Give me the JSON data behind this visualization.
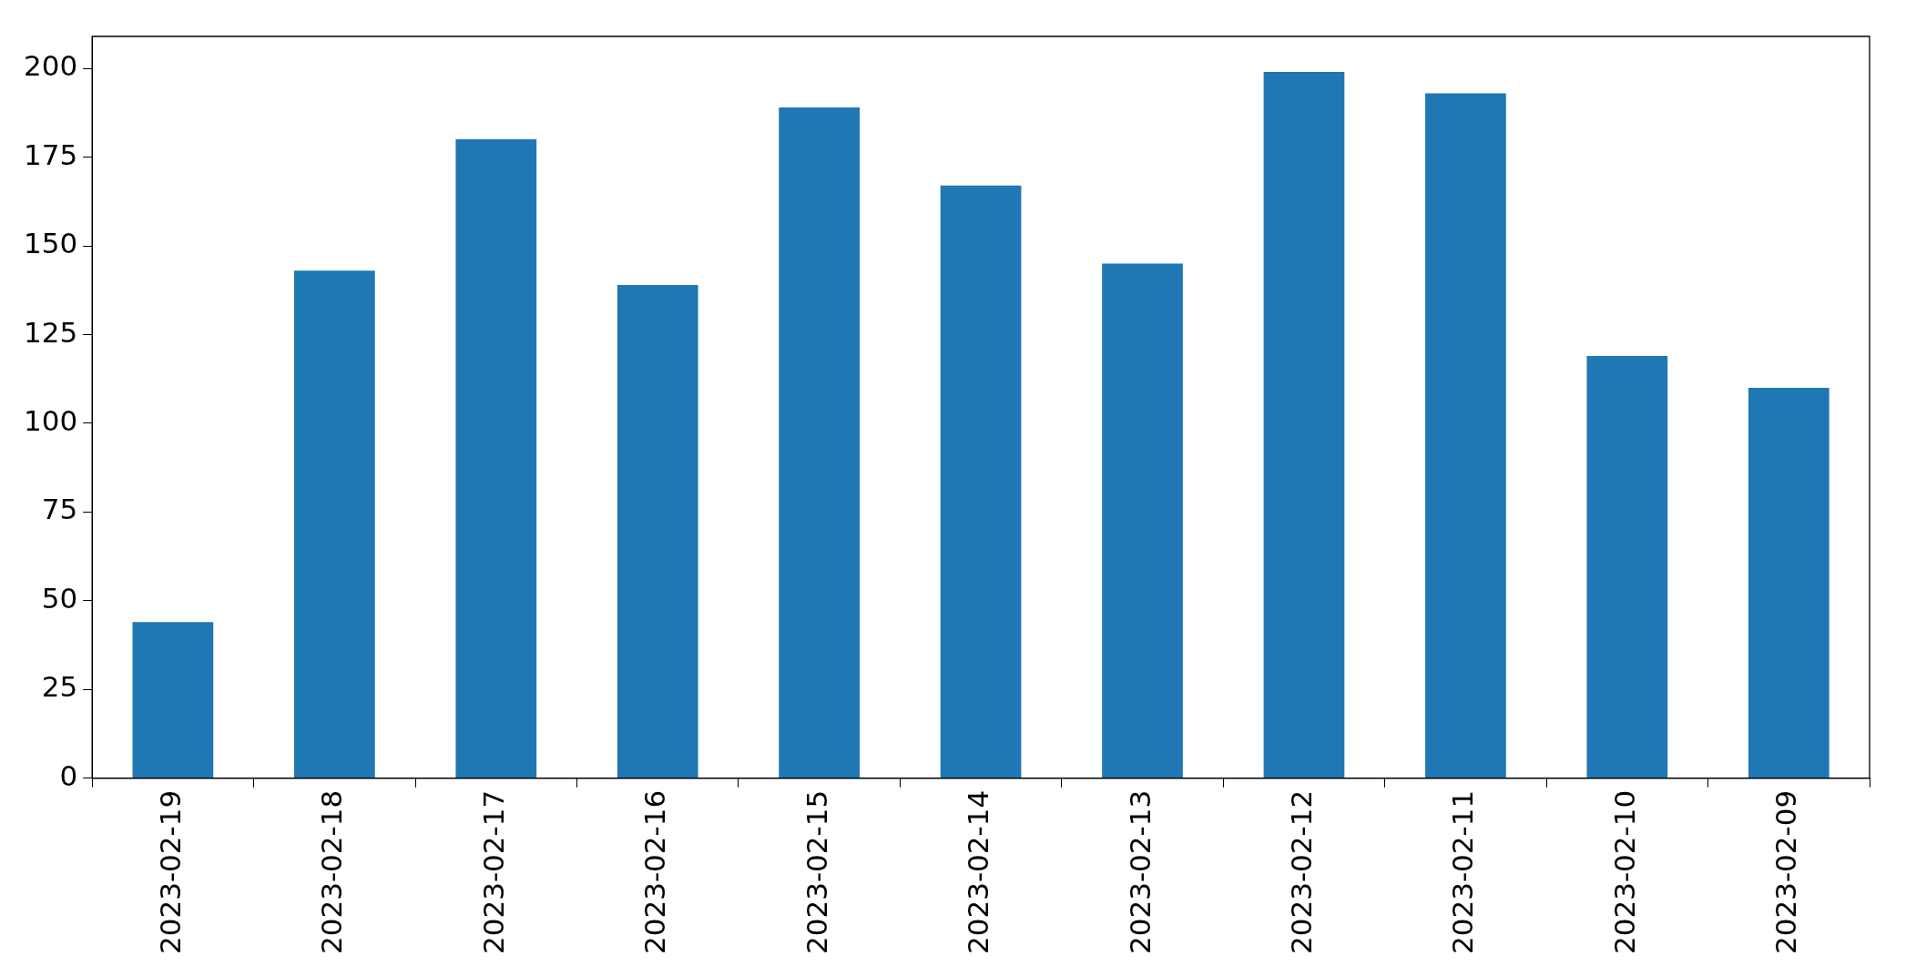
{
  "chart_data": {
    "type": "bar",
    "categories": [
      "2023-02-19",
      "2023-02-18",
      "2023-02-17",
      "2023-02-16",
      "2023-02-15",
      "2023-02-14",
      "2023-02-13",
      "2023-02-12",
      "2023-02-11",
      "2023-02-10",
      "2023-02-09"
    ],
    "values": [
      44,
      143,
      180,
      139,
      189,
      167,
      145,
      199,
      193,
      119,
      110
    ],
    "color": "#1f77b4",
    "ylim": [
      0,
      209
    ],
    "yticks": [
      0,
      25,
      50,
      75,
      100,
      125,
      150,
      175,
      200
    ],
    "grid": false,
    "legend": false
  }
}
